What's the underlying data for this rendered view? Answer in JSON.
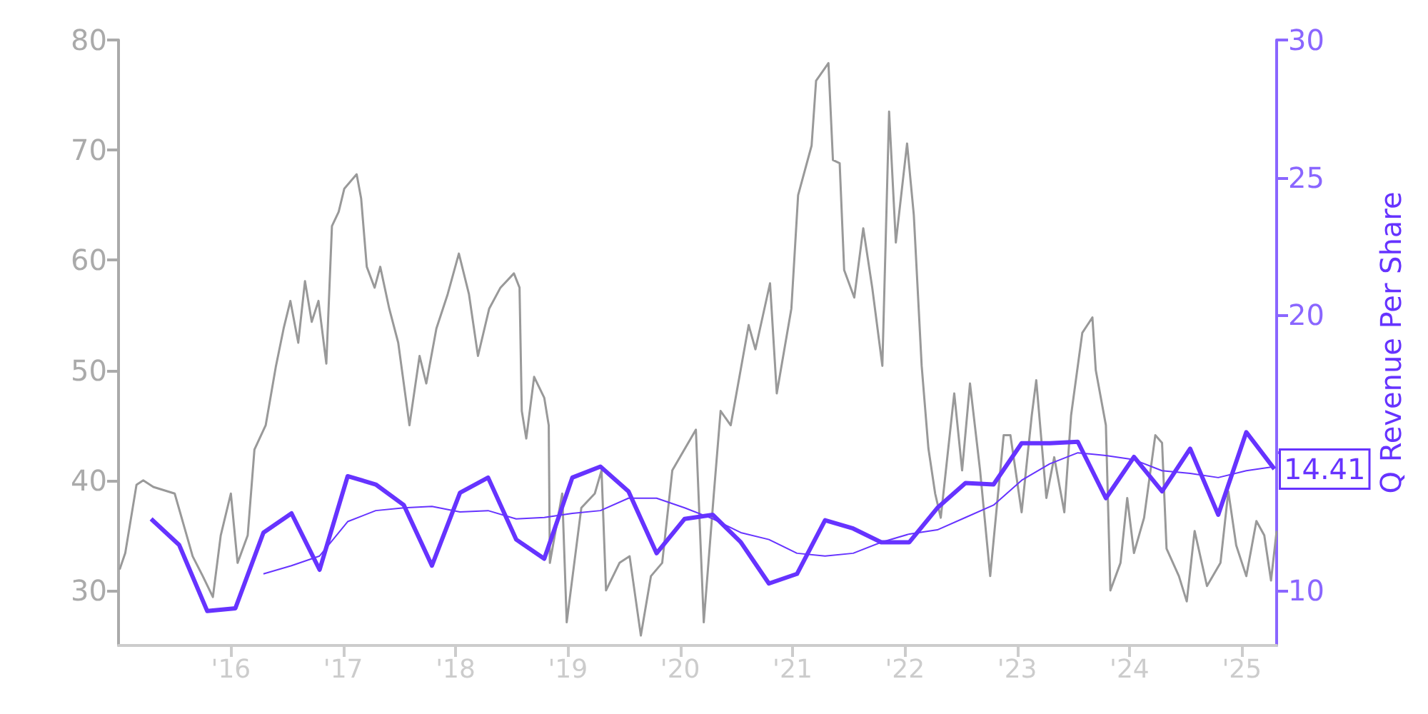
{
  "chart_data": {
    "type": "line",
    "y2label": "Q Revenue Per Share",
    "grid": false,
    "marker": "none",
    "xlim": [
      2015,
      2025.31
    ],
    "xticks": [
      {
        "value": 2016,
        "label": "'16"
      },
      {
        "value": 2017,
        "label": "'17"
      },
      {
        "value": 2018,
        "label": "'18"
      },
      {
        "value": 2019,
        "label": "'19"
      },
      {
        "value": 2020,
        "label": "'20"
      },
      {
        "value": 2021,
        "label": "'21"
      },
      {
        "value": 2022,
        "label": "'22"
      },
      {
        "value": 2023,
        "label": "'23"
      },
      {
        "value": 2024,
        "label": "'24"
      },
      {
        "value": 2025,
        "label": "'25"
      }
    ],
    "ylim": [
      25,
      80
    ],
    "yticks": [
      30,
      40,
      50,
      60,
      70,
      80
    ],
    "y2lim": [
      8,
      30
    ],
    "y2ticks": [
      10,
      {
        "value": 15,
        "label": null
      },
      20,
      25,
      30
    ],
    "annotations": [
      "14.41"
    ],
    "series": [
      {
        "color": "#999999",
        "axis": "y",
        "x": [
          2015.01,
          2015.06,
          2015.16,
          2015.22,
          2015.31,
          2015.5,
          2015.59,
          2015.66,
          2015.75,
          2015.84,
          2015.91,
          2016.0,
          2016.06,
          2016.15,
          2016.21,
          2016.31,
          2016.4,
          2016.47,
          2016.53,
          2016.6,
          2016.66,
          2016.72,
          2016.78,
          2016.85,
          2016.9,
          2016.96,
          2017.01,
          2017.12,
          2017.16,
          2017.21,
          2017.28,
          2017.33,
          2017.41,
          2017.49,
          2017.59,
          2017.68,
          2017.74,
          2017.83,
          2017.93,
          2018.03,
          2018.12,
          2018.2,
          2018.3,
          2018.4,
          2018.52,
          2018.57,
          2018.59,
          2018.63,
          2018.7,
          2018.79,
          2018.83,
          2018.84,
          2018.95,
          2018.99,
          2019.12,
          2019.24,
          2019.3,
          2019.34,
          2019.46,
          2019.55,
          2019.65,
          2019.74,
          2019.84,
          2019.93,
          2020.14,
          2020.21,
          2020.3,
          2020.36,
          2020.45,
          2020.61,
          2020.67,
          2020.8,
          2020.86,
          2020.99,
          2021.05,
          2021.17,
          2021.21,
          2021.32,
          2021.36,
          2021.42,
          2021.46,
          2021.55,
          2021.63,
          2021.71,
          2021.8,
          2021.86,
          2021.92,
          2022.02,
          2022.08,
          2022.15,
          2022.21,
          2022.27,
          2022.32,
          2022.44,
          2022.51,
          2022.58,
          2022.67,
          2022.76,
          2022.88,
          2022.94,
          2023.04,
          2023.13,
          2023.17,
          2023.26,
          2023.33,
          2023.42,
          2023.48,
          2023.58,
          2023.67,
          2023.7,
          2023.79,
          2023.83,
          2023.92,
          2023.98,
          2024.04,
          2024.13,
          2024.23,
          2024.29,
          2024.33,
          2024.44,
          2024.51,
          2024.58,
          2024.69,
          2024.81,
          2024.88,
          2024.95,
          2025.04,
          2025.13,
          2025.2,
          2025.26,
          2025.31
        ],
        "values": [
          31.9,
          33.4,
          39.6,
          40,
          39.4,
          38.8,
          35.6,
          33.1,
          31.3,
          29.4,
          35,
          38.8,
          32.5,
          35,
          42.8,
          45,
          50.3,
          53.8,
          56.3,
          52.5,
          58.1,
          54.4,
          56.3,
          50.6,
          63.1,
          64.4,
          66.5,
          67.8,
          65.6,
          59.4,
          57.5,
          59.4,
          55.6,
          52.5,
          45,
          51.3,
          48.8,
          53.8,
          56.9,
          60.6,
          56.9,
          51.3,
          55.6,
          57.5,
          58.8,
          57.5,
          46.3,
          43.8,
          49.4,
          47.5,
          45,
          32.5,
          38.8,
          27.1,
          37.5,
          38.8,
          40.9,
          30,
          32.5,
          33.1,
          25.9,
          31.3,
          32.5,
          40.9,
          44.6,
          27.1,
          38.8,
          46.3,
          45,
          54.1,
          51.9,
          57.9,
          47.9,
          55.6,
          65.9,
          70.4,
          76.3,
          77.9,
          69.1,
          68.8,
          59.1,
          56.6,
          62.9,
          57.5,
          50.4,
          73.5,
          61.6,
          70.6,
          64.1,
          50.4,
          42.9,
          38.8,
          36.6,
          47.9,
          40.9,
          48.8,
          40.9,
          31.3,
          44.1,
          44.1,
          37.1,
          45.9,
          49.1,
          38.4,
          42.1,
          37.1,
          45.9,
          53.4,
          54.8,
          50,
          45,
          30,
          32.5,
          38.4,
          33.4,
          36.6,
          44.1,
          43.4,
          33.8,
          31.3,
          29,
          35.4,
          30.4,
          32.5,
          39,
          34.1,
          31.3,
          36.3,
          35,
          30.9,
          35.4
        ]
      },
      {
        "color": "#6633ff",
        "axis": "y2",
        "x": [
          2015.29,
          2015.54,
          2015.79,
          2016.04,
          2016.29,
          2016.54,
          2016.79,
          2017.04,
          2017.29,
          2017.54,
          2017.79,
          2018.04,
          2018.29,
          2018.54,
          2018.79,
          2019.04,
          2019.29,
          2019.54,
          2019.79,
          2020.04,
          2020.29,
          2020.54,
          2020.79,
          2021.04,
          2021.29,
          2021.54,
          2021.79,
          2022.04,
          2022.29,
          2022.54,
          2022.79,
          2023.04,
          2023.29,
          2023.54,
          2023.79,
          2024.04,
          2024.29,
          2024.54,
          2024.79,
          2025.04,
          2025.29
        ],
        "values": [
          12.6,
          11.65,
          9.25,
          9.35,
          12.1,
          12.8,
          10.75,
          14.15,
          13.85,
          13.1,
          10.9,
          13.55,
          14.1,
          11.85,
          11.15,
          14.1,
          14.5,
          13.6,
          11.35,
          12.6,
          12.75,
          11.75,
          10.25,
          10.6,
          12.55,
          12.25,
          11.75,
          11.75,
          13.0,
          13.9,
          13.85,
          15.35,
          15.35,
          15.4,
          13.35,
          14.85,
          13.6,
          15.15,
          12.75,
          15.75,
          14.41
        ]
      },
      {
        "color": "#6633ff",
        "axis": "y2",
        "x": [
          2016.29,
          2016.54,
          2016.79,
          2017.04,
          2017.29,
          2017.54,
          2017.79,
          2018.04,
          2018.29,
          2018.54,
          2018.79,
          2019.04,
          2019.29,
          2019.54,
          2019.79,
          2020.04,
          2020.29,
          2020.54,
          2020.79,
          2021.04,
          2021.29,
          2021.54,
          2021.79,
          2022.04,
          2022.29,
          2022.54,
          2022.79,
          2023.04,
          2023.29,
          2023.54,
          2023.79,
          2024.04,
          2024.29,
          2024.54,
          2024.79,
          2025.04,
          2025.29
        ],
        "values": [
          10.6,
          10.9,
          11.25,
          12.5,
          12.9,
          13.0,
          13.05,
          12.85,
          12.9,
          12.6,
          12.65,
          12.8,
          12.9,
          13.35,
          13.35,
          13.0,
          12.6,
          12.1,
          11.85,
          11.35,
          11.25,
          11.35,
          11.75,
          12.05,
          12.2,
          12.65,
          13.1,
          14.0,
          14.6,
          15.0,
          14.9,
          14.75,
          14.35,
          14.25,
          14.1,
          14.35,
          14.5
        ]
      }
    ]
  }
}
